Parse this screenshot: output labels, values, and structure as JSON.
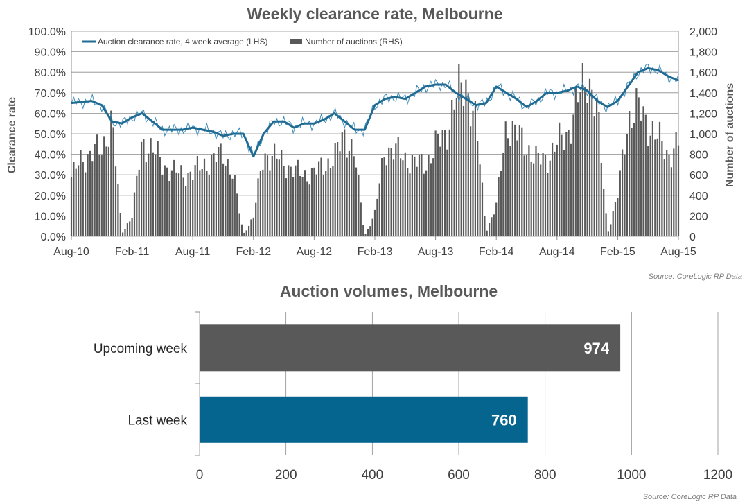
{
  "chart_data": [
    {
      "type": "line+bar",
      "title": "Weekly clearance rate, Melbourne",
      "ylabel_left": "Clearance rate",
      "ylabel_right": "Number of auctions",
      "ylim_left": [
        0,
        100
      ],
      "ylim_right": [
        0,
        2000
      ],
      "x_range": [
        "2010-08",
        "2015-08"
      ],
      "x_tick_labels": [
        "Aug-10",
        "Feb-11",
        "Aug-11",
        "Feb-12",
        "Aug-12",
        "Feb-13",
        "Aug-13",
        "Feb-14",
        "Aug-14",
        "Feb-15",
        "Aug-15"
      ],
      "y_left_tick_labels": [
        "0.0%",
        "10.0%",
        "20.0%",
        "30.0%",
        "40.0%",
        "50.0%",
        "60.0%",
        "70.0%",
        "80.0%",
        "90.0%",
        "100.0%"
      ],
      "y_right_tick_labels": [
        "0",
        "200",
        "400",
        "600",
        "800",
        "1,000",
        "1,200",
        "1,400",
        "1,600",
        "1,800",
        "2,000"
      ],
      "grid": true,
      "legend_position": "top-left",
      "source": "Source: CoreLogic RP Data",
      "series": [
        {
          "name": "Auction clearance rate, 4 week average (LHS)",
          "kind": "line",
          "axis": "left",
          "color": "#1f6b93",
          "points": [
            [
              "2010-08",
              65
            ],
            [
              "2010-10",
              66
            ],
            [
              "2010-11",
              64
            ],
            [
              "2010-12",
              56
            ],
            [
              "2011-01",
              55
            ],
            [
              "2011-02",
              58
            ],
            [
              "2011-03",
              60
            ],
            [
              "2011-04",
              56
            ],
            [
              "2011-05",
              52
            ],
            [
              "2011-06",
              52
            ],
            [
              "2011-07",
              52
            ],
            [
              "2011-08",
              53
            ],
            [
              "2011-09",
              52
            ],
            [
              "2011-10",
              51
            ],
            [
              "2011-11",
              49
            ],
            [
              "2011-12",
              50
            ],
            [
              "2012-01",
              50
            ],
            [
              "2012-02",
              39
            ],
            [
              "2012-03",
              50
            ],
            [
              "2012-04",
              56
            ],
            [
              "2012-05",
              56
            ],
            [
              "2012-06",
              53
            ],
            [
              "2012-07",
              55
            ],
            [
              "2012-08",
              55
            ],
            [
              "2012-09",
              57
            ],
            [
              "2012-10",
              60
            ],
            [
              "2012-11",
              56
            ],
            [
              "2012-12",
              52
            ],
            [
              "2013-01",
              52
            ],
            [
              "2013-02",
              64
            ],
            [
              "2013-03",
              67
            ],
            [
              "2013-04",
              68
            ],
            [
              "2013-05",
              67
            ],
            [
              "2013-06",
              70
            ],
            [
              "2013-07",
              73
            ],
            [
              "2013-08",
              74
            ],
            [
              "2013-09",
              74
            ],
            [
              "2013-10",
              70
            ],
            [
              "2013-11",
              67
            ],
            [
              "2013-12",
              64
            ],
            [
              "2014-01",
              65
            ],
            [
              "2014-02",
              73
            ],
            [
              "2014-03",
              70
            ],
            [
              "2014-04",
              67
            ],
            [
              "2014-05",
              63
            ],
            [
              "2014-06",
              66
            ],
            [
              "2014-07",
              70
            ],
            [
              "2014-08",
              70
            ],
            [
              "2014-09",
              71
            ],
            [
              "2014-10",
              73
            ],
            [
              "2014-11",
              71
            ],
            [
              "2014-12",
              66
            ],
            [
              "2015-01",
              63
            ],
            [
              "2015-02",
              66
            ],
            [
              "2015-03",
              73
            ],
            [
              "2015-04",
              80
            ],
            [
              "2015-05",
              82
            ],
            [
              "2015-06",
              81
            ],
            [
              "2015-07",
              78
            ],
            [
              "2015-08",
              76
            ]
          ]
        },
        {
          "name": "Number of auctions (RHS)",
          "kind": "bar",
          "axis": "right",
          "color": "#595959",
          "points": [
            [
              "2010-08",
              580
            ],
            [
              "2010-09",
              750
            ],
            [
              "2010-10",
              820
            ],
            [
              "2010-11",
              840
            ],
            [
              "2010-12",
              1150
            ],
            [
              "2011-01",
              30
            ],
            [
              "2011-02",
              200
            ],
            [
              "2011-03",
              920
            ],
            [
              "2011-04",
              860
            ],
            [
              "2011-05",
              700
            ],
            [
              "2011-06",
              640
            ],
            [
              "2011-07",
              600
            ],
            [
              "2011-08",
              620
            ],
            [
              "2011-09",
              700
            ],
            [
              "2011-10",
              740
            ],
            [
              "2011-11",
              820
            ],
            [
              "2011-12",
              600
            ],
            [
              "2012-01",
              20
            ],
            [
              "2012-02",
              190
            ],
            [
              "2012-03",
              800
            ],
            [
              "2012-04",
              780
            ],
            [
              "2012-05",
              720
            ],
            [
              "2012-06",
              640
            ],
            [
              "2012-07",
              600
            ],
            [
              "2012-08",
              620
            ],
            [
              "2012-09",
              700
            ],
            [
              "2012-10",
              760
            ],
            [
              "2012-11",
              1000
            ],
            [
              "2012-12",
              800
            ],
            [
              "2013-01",
              10
            ],
            [
              "2013-02",
              220
            ],
            [
              "2013-03",
              860
            ],
            [
              "2013-04",
              840
            ],
            [
              "2013-05",
              760
            ],
            [
              "2013-06",
              720
            ],
            [
              "2013-07",
              700
            ],
            [
              "2013-08",
              880
            ],
            [
              "2013-09",
              1000
            ],
            [
              "2013-10",
              1350
            ],
            [
              "2013-11",
              1500
            ],
            [
              "2013-12",
              1100
            ],
            [
              "2014-01",
              50
            ],
            [
              "2014-02",
              300
            ],
            [
              "2014-03",
              1100
            ],
            [
              "2014-04",
              1000
            ],
            [
              "2014-05",
              880
            ],
            [
              "2014-06",
              740
            ],
            [
              "2014-07",
              760
            ],
            [
              "2014-08",
              900
            ],
            [
              "2014-09",
              1000
            ],
            [
              "2014-10",
              1300
            ],
            [
              "2014-11",
              1600
            ],
            [
              "2014-12",
              1200
            ],
            [
              "2015-01",
              30
            ],
            [
              "2015-02",
              400
            ],
            [
              "2015-03",
              1150
            ],
            [
              "2015-04",
              1250
            ],
            [
              "2015-05",
              1100
            ],
            [
              "2015-06",
              950
            ],
            [
              "2015-07",
              800
            ],
            [
              "2015-08",
              900
            ]
          ]
        }
      ]
    },
    {
      "type": "bar",
      "orientation": "horizontal",
      "title": "Auction volumes, Melbourne",
      "categories": [
        "Upcoming week",
        "Last week"
      ],
      "values": [
        974,
        760
      ],
      "value_labels": [
        "974",
        "760"
      ],
      "colors": [
        "#595959",
        "#06658f"
      ],
      "xlim": [
        0,
        1200
      ],
      "x_tick_labels": [
        "0",
        "200",
        "400",
        "600",
        "800",
        "1000",
        "1200"
      ],
      "grid": true,
      "source": "Source: CoreLogic RP Data"
    }
  ]
}
